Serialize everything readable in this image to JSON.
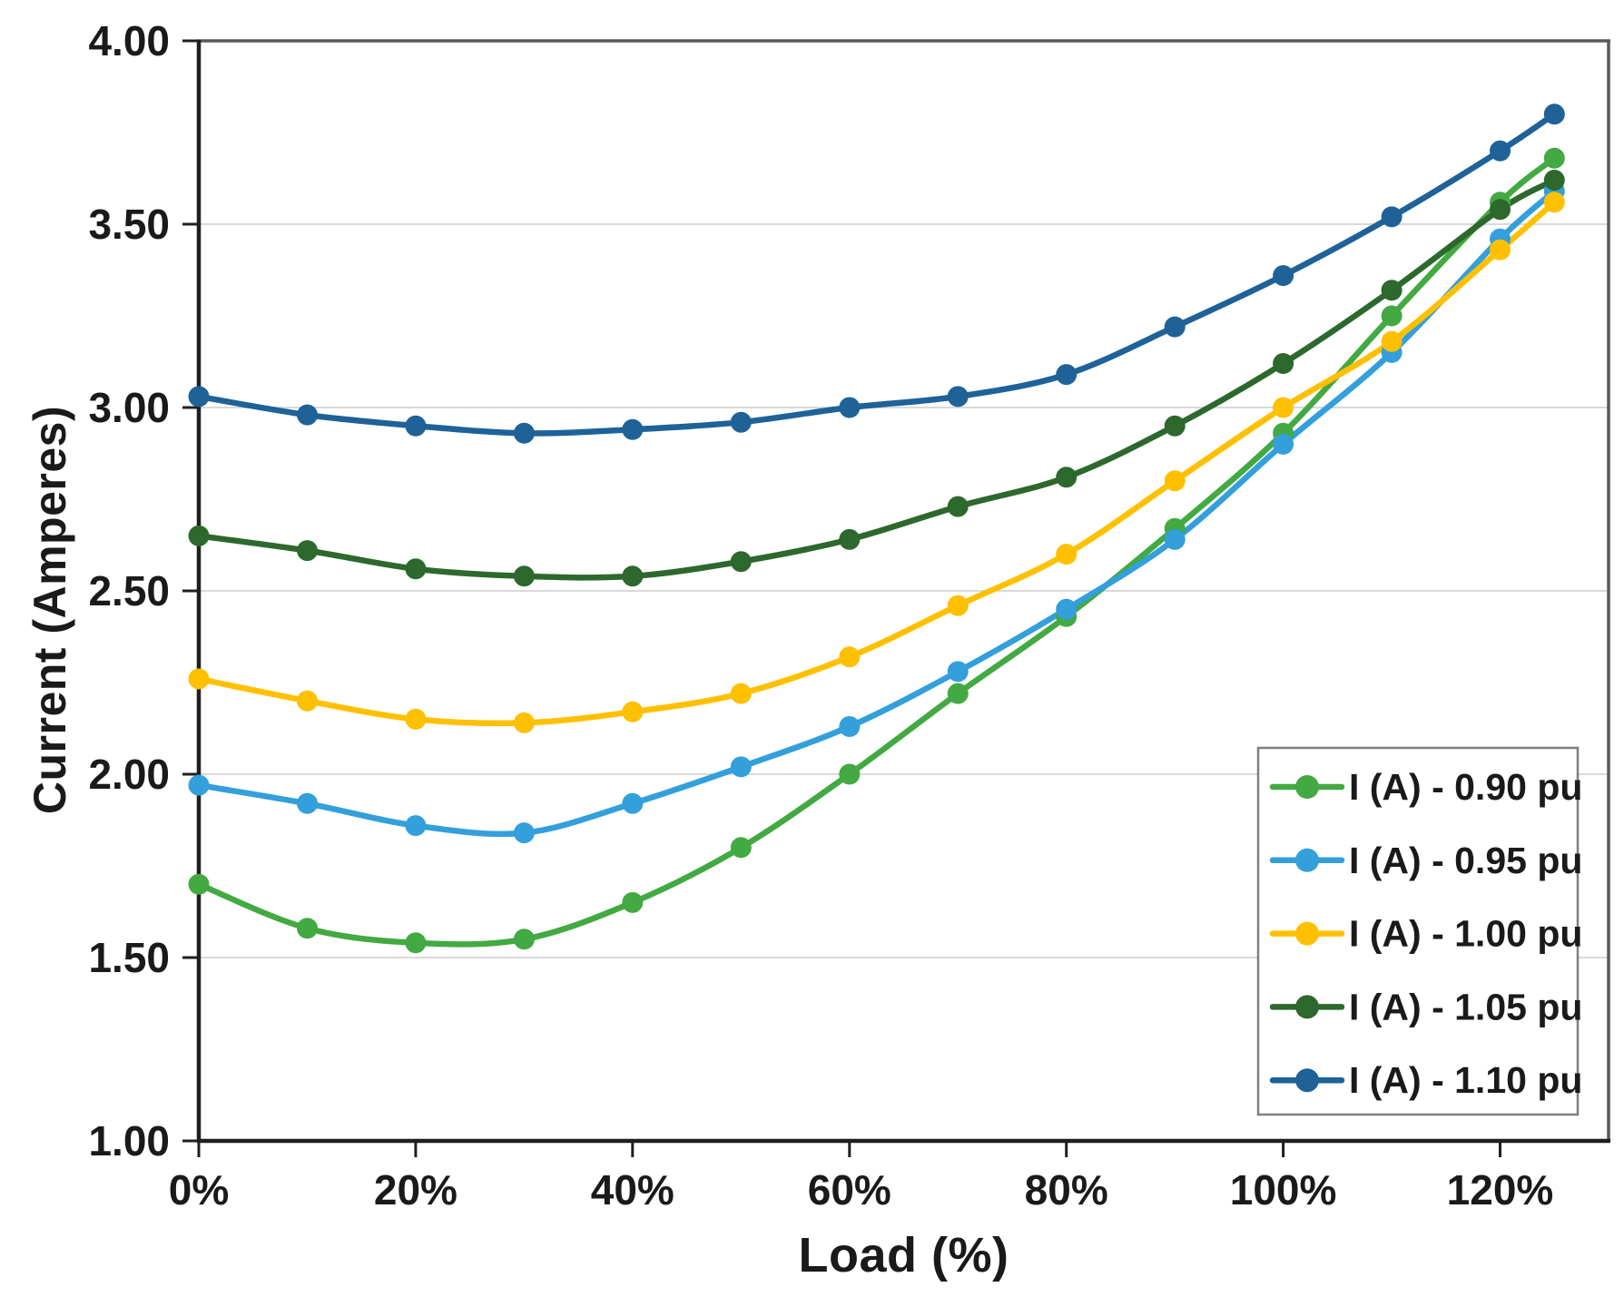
{
  "axes": {
    "x_title": "Load (%)",
    "y_title": "Current (Amperes)"
  },
  "chart_data": {
    "type": "line",
    "title": "",
    "xlabel": "Load (%)",
    "ylabel": "Current (Amperes)",
    "x": [
      0,
      10,
      20,
      30,
      40,
      50,
      60,
      70,
      80,
      90,
      100,
      110,
      120,
      125
    ],
    "x_tick_values": [
      0,
      20,
      40,
      60,
      80,
      100,
      120
    ],
    "x_tick_labels": [
      "0%",
      "20%",
      "40%",
      "60%",
      "80%",
      "100%",
      "120%"
    ],
    "xlim": [
      0,
      130
    ],
    "y_tick_values": [
      1.0,
      1.5,
      2.0,
      2.5,
      3.0,
      3.5,
      4.0
    ],
    "y_tick_labels": [
      "1.00",
      "1.50",
      "2.00",
      "2.50",
      "3.00",
      "3.50",
      "4.00"
    ],
    "ylim": [
      1.0,
      4.0
    ],
    "grid": "horizontal",
    "legend_position": "lower-right",
    "series": [
      {
        "name": "I (A) - 0.90 pu",
        "color": "#43A942",
        "values": [
          1.7,
          1.58,
          1.54,
          1.55,
          1.65,
          1.8,
          2.0,
          2.22,
          2.43,
          2.67,
          2.93,
          3.25,
          3.56,
          3.68
        ]
      },
      {
        "name": "I (A) - 0.95 pu",
        "color": "#339FDB",
        "values": [
          1.97,
          1.92,
          1.86,
          1.84,
          1.92,
          2.02,
          2.13,
          2.28,
          2.45,
          2.64,
          2.9,
          3.15,
          3.46,
          3.59
        ]
      },
      {
        "name": "I (A) - 1.00 pu",
        "color": "#FFC000",
        "values": [
          2.26,
          2.2,
          2.15,
          2.14,
          2.17,
          2.22,
          2.32,
          2.46,
          2.6,
          2.8,
          3.0,
          3.18,
          3.43,
          3.56
        ]
      },
      {
        "name": "I (A) - 1.05 pu",
        "color": "#2D682D",
        "values": [
          2.65,
          2.61,
          2.56,
          2.54,
          2.54,
          2.58,
          2.64,
          2.73,
          2.81,
          2.95,
          3.12,
          3.32,
          3.54,
          3.62
        ]
      },
      {
        "name": "I (A) - 1.10 pu",
        "color": "#1E6298",
        "values": [
          3.03,
          2.98,
          2.95,
          2.93,
          2.94,
          2.96,
          3.0,
          3.03,
          3.09,
          3.22,
          3.36,
          3.52,
          3.7,
          3.8
        ]
      }
    ],
    "style": {
      "grid_color": "#D9D9D9",
      "frame_color": "#595959",
      "axis_color": "#1f1f1f",
      "text_color": "#1a1a1a",
      "legend_border_color": "#7F7F7F",
      "background": "#FFFFFF"
    }
  }
}
